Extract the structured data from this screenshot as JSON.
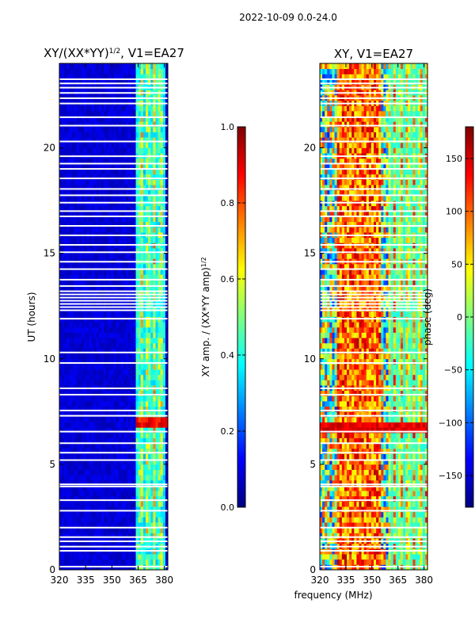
{
  "suptitle": "2022-10-09 0.0-24.0",
  "chart_data": [
    {
      "type": "heatmap",
      "title_prefix": "XY/(XX*YY)",
      "title_exponent": "1/2",
      "title_suffix": ", V1=EA27",
      "xlabel": "",
      "ylabel": "UT (hours)",
      "xlim": [
        320,
        382
      ],
      "ylim": [
        0,
        24
      ],
      "xticks": [
        320,
        335,
        350,
        365,
        380
      ],
      "yticks": [
        0,
        5,
        10,
        15,
        20
      ],
      "colorbar": {
        "label_prefix": "XY amp. / (XX*YY amp)",
        "label_exponent": "1/2",
        "range": [
          0.0,
          1.0
        ],
        "ticks": [
          "0.0",
          "0.2",
          "0.4",
          "0.6",
          "0.8",
          "1.0"
        ]
      }
    },
    {
      "type": "heatmap",
      "title": "XY, V1=EA27",
      "xlabel": "frequency (MHz)",
      "ylabel": "",
      "xlim": [
        320,
        382
      ],
      "ylim": [
        0,
        24
      ],
      "xticks": [
        320,
        335,
        350,
        365,
        380
      ],
      "yticks": [
        0,
        5,
        10,
        15,
        20
      ],
      "colorbar": {
        "label": "phase (deg)",
        "range": [
          -180,
          180
        ],
        "ticks": [
          "150",
          "100",
          "50",
          "0",
          "−50",
          "−100",
          "−150"
        ]
      }
    }
  ],
  "colormap": [
    "#00007f",
    "#0000ff",
    "#007fff",
    "#00ffff",
    "#7fff7f",
    "#ffff00",
    "#ff7f00",
    "#ff0000",
    "#7f0000"
  ],
  "flag_hours": [
    0.15,
    0.9,
    1.1,
    1.35,
    1.55,
    2.0,
    2.8,
    3.3,
    3.95,
    4.05,
    5.2,
    5.55,
    6.0,
    6.55,
    7.3,
    7.55,
    8.3,
    8.6,
    9.8,
    10.3,
    11.9,
    12.3,
    12.45,
    12.6,
    12.75,
    12.9,
    13.05,
    13.2,
    13.45,
    13.75,
    14.25,
    14.6,
    15.05,
    15.4,
    15.85,
    16.3,
    16.75,
    17.0,
    17.4,
    17.75,
    18.05,
    18.55,
    19.0,
    19.25,
    19.6,
    20.3,
    21.05,
    21.45,
    22.1,
    22.35,
    22.6,
    22.85,
    23.05,
    23.25
  ]
}
